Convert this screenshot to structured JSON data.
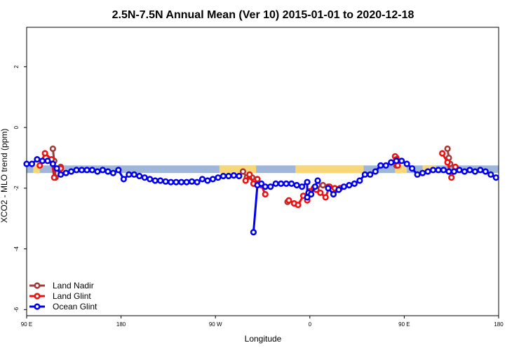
{
  "colors": {
    "ocean_band": "#9fb6d8",
    "land_band": "#f7d77a",
    "land_nadir": "#a23a3a",
    "land_glint": "#ee1111",
    "ocean_glint": "#0000ee"
  },
  "chart_data": {
    "type": "line",
    "title": "2.5N-7.5N Annual Mean (Ver 10)   2015-01-01 to 2020-12-18",
    "xlabel": "Longitude",
    "ylabel": "XCO2 - MLO trend (ppm)",
    "xlim": [
      -180,
      180
    ],
    "ylim": [
      -6.2,
      3.3
    ],
    "x_ticks": [
      {
        "value": -180,
        "label": "90 E"
      },
      {
        "value": -108,
        "label": "180"
      },
      {
        "value": -36,
        "label": "90 W"
      },
      {
        "value": 36,
        "label": "0"
      },
      {
        "value": 108,
        "label": "90 E"
      },
      {
        "value": 180,
        "label": "180"
      }
    ],
    "y_ticks": [
      {
        "value": 2,
        "label": "2"
      },
      {
        "value": 0,
        "label": "0"
      },
      {
        "value": -2,
        "label": "-2"
      },
      {
        "value": -4,
        "label": "-4"
      },
      {
        "value": -6,
        "label": "-6"
      }
    ],
    "grid": false,
    "legend_position": "bottom-left",
    "background_band": {
      "y_range": [
        -1.5,
        -1.25
      ],
      "land_segments": [
        {
          "x_start": -175,
          "x_end": -170
        },
        {
          "x_start": -160,
          "x_end": -155
        },
        {
          "x_start": -33,
          "x_end": -5
        },
        {
          "x_start": 25,
          "x_end": 77
        },
        {
          "x_start": 101,
          "x_end": 110
        },
        {
          "x_start": 122,
          "x_end": 132
        }
      ]
    },
    "series": [
      {
        "name": "Land Nadir",
        "color": "#a23a3a",
        "segments": [
          [
            [
              -160,
              -0.7
            ],
            [
              -159,
              -1.1
            ],
            [
              -158,
              -1.65
            ]
          ],
          [
            [
              -154,
              -1.3
            ]
          ],
          [
            [
              -15,
              -1.45
            ],
            [
              -12,
              -1.65
            ],
            [
              -8,
              -1.65
            ]
          ],
          [
            [
              19,
              -2.45
            ]
          ],
          [
            [
              42,
              -1.9
            ],
            [
              46,
              -1.9
            ],
            [
              50,
              -1.95
            ]
          ],
          [
            [
              102,
              -1.0
            ],
            [
              102,
              -1.25
            ]
          ],
          [
            [
              141,
              -0.7
            ],
            [
              142,
              -1.0
            ],
            [
              143,
              -1.2
            ]
          ],
          [
            [
              147,
              -1.3
            ]
          ]
        ]
      },
      {
        "name": "Land Glint",
        "color": "#ee1111",
        "segments": [
          [
            [
              -170,
              -1.25
            ],
            [
              -166,
              -0.85
            ],
            [
              -161,
              -1.05
            ],
            [
              -159,
              -1.65
            ]
          ],
          [
            [
              -154,
              -1.35
            ]
          ],
          [
            [
              -13,
              -1.75
            ],
            [
              -10,
              -1.55
            ],
            [
              -7,
              -1.85
            ],
            [
              -4,
              -1.7
            ],
            [
              -1,
              -1.9
            ],
            [
              2,
              -2.2
            ]
          ],
          [
            [
              20,
              -2.4
            ],
            [
              24,
              -2.5
            ],
            [
              27,
              -2.55
            ],
            [
              31,
              -2.25
            ],
            [
              34,
              -2.4
            ],
            [
              36,
              -2.1
            ],
            [
              39,
              -2.0
            ],
            [
              41,
              -2.05
            ],
            [
              44,
              -2.15
            ],
            [
              48,
              -2.3
            ],
            [
              51,
              -1.95
            ],
            [
              55,
              -2.0
            ],
            [
              59,
              -2.0
            ]
          ],
          [
            [
              101,
              -0.95
            ],
            [
              102,
              -1.05
            ],
            [
              103,
              -1.25
            ]
          ],
          [
            [
              137,
              -0.85
            ],
            [
              141,
              -1.15
            ],
            [
              144,
              -1.65
            ],
            [
              147,
              -1.3
            ]
          ]
        ]
      },
      {
        "name": "Ocean Glint",
        "color": "#0000ee",
        "segments": [
          [
            [
              -180,
              -1.2
            ],
            [
              -176,
              -1.2
            ],
            [
              -172,
              -1.05
            ],
            [
              -168,
              -1.1
            ],
            [
              -164,
              -1.1
            ],
            [
              -160,
              -1.2
            ],
            [
              -157,
              -1.35
            ],
            [
              -154,
              -1.55
            ],
            [
              -150,
              -1.5
            ],
            [
              -146,
              -1.45
            ],
            [
              -142,
              -1.4
            ],
            [
              -138,
              -1.4
            ],
            [
              -134,
              -1.4
            ],
            [
              -130,
              -1.4
            ],
            [
              -126,
              -1.45
            ],
            [
              -122,
              -1.4
            ],
            [
              -118,
              -1.45
            ],
            [
              -114,
              -1.5
            ],
            [
              -110,
              -1.4
            ],
            [
              -106,
              -1.7
            ],
            [
              -102,
              -1.55
            ],
            [
              -98,
              -1.55
            ],
            [
              -94,
              -1.6
            ],
            [
              -90,
              -1.65
            ],
            [
              -86,
              -1.7
            ],
            [
              -82,
              -1.75
            ],
            [
              -78,
              -1.75
            ],
            [
              -74,
              -1.78
            ],
            [
              -70,
              -1.8
            ],
            [
              -66,
              -1.8
            ],
            [
              -62,
              -1.8
            ],
            [
              -58,
              -1.8
            ],
            [
              -54,
              -1.78
            ],
            [
              -50,
              -1.8
            ],
            [
              -46,
              -1.7
            ],
            [
              -42,
              -1.75
            ],
            [
              -38,
              -1.7
            ],
            [
              -34,
              -1.65
            ],
            [
              -30,
              -1.6
            ],
            [
              -26,
              -1.6
            ],
            [
              -22,
              -1.58
            ],
            [
              -18,
              -1.6
            ]
          ],
          [
            [
              -7,
              -3.45
            ],
            [
              -4,
              -1.9
            ],
            [
              -1,
              -1.85
            ],
            [
              2,
              -1.95
            ],
            [
              6,
              -1.95
            ],
            [
              10,
              -1.85
            ],
            [
              14,
              -1.85
            ],
            [
              18,
              -1.85
            ],
            [
              22,
              -1.85
            ],
            [
              26,
              -1.9
            ],
            [
              30,
              -1.95
            ],
            [
              34,
              -1.8
            ],
            [
              34,
              -2.3
            ],
            [
              35,
              -2.15
            ]
          ],
          [
            [
              37,
              -2.2
            ],
            [
              40,
              -1.95
            ],
            [
              42,
              -1.75
            ]
          ],
          [
            [
              50,
              -2.0
            ],
            [
              54,
              -2.2
            ],
            [
              58,
              -2.05
            ],
            [
              62,
              -1.95
            ],
            [
              66,
              -1.9
            ],
            [
              70,
              -1.85
            ],
            [
              74,
              -1.75
            ],
            [
              78,
              -1.55
            ],
            [
              82,
              -1.55
            ],
            [
              86,
              -1.45
            ],
            [
              90,
              -1.25
            ],
            [
              94,
              -1.25
            ],
            [
              98,
              -1.15
            ],
            [
              102,
              -1.1
            ],
            [
              106,
              -1.1
            ],
            [
              110,
              -1.2
            ],
            [
              114,
              -1.35
            ],
            [
              118,
              -1.55
            ],
            [
              122,
              -1.5
            ],
            [
              126,
              -1.45
            ],
            [
              130,
              -1.4
            ],
            [
              134,
              -1.4
            ],
            [
              138,
              -1.4
            ],
            [
              142,
              -1.45
            ],
            [
              146,
              -1.45
            ],
            [
              150,
              -1.4
            ],
            [
              154,
              -1.45
            ],
            [
              158,
              -1.4
            ],
            [
              162,
              -1.45
            ],
            [
              166,
              -1.4
            ],
            [
              170,
              -1.45
            ],
            [
              174,
              -1.55
            ],
            [
              178,
              -1.65
            ]
          ]
        ]
      }
    ]
  }
}
